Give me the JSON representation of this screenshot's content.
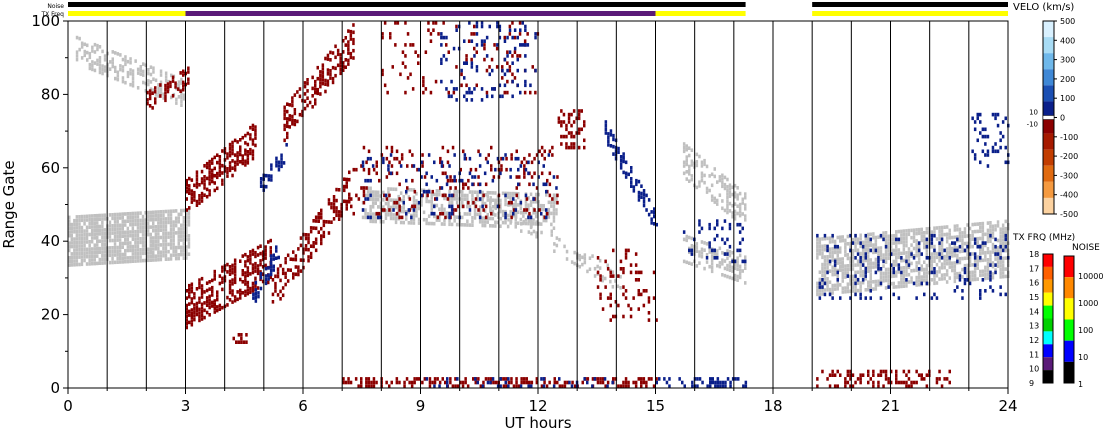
{
  "chart_data": {
    "type": "heatmap",
    "x_axis": {
      "label": "UT hours",
      "range": [
        0,
        24
      ],
      "ticks": [
        "0",
        "3",
        "6",
        "9",
        "12",
        "15",
        "18",
        "21",
        "24"
      ]
    },
    "y_axis": {
      "label": "Range Gate",
      "range": [
        0,
        100
      ],
      "ticks": [
        "0",
        "20",
        "40",
        "60",
        "80",
        "100"
      ]
    },
    "top_bars": {
      "noise_label": "Noise",
      "txfreq_label": "TX Freq",
      "noise_segments_hours": [
        [
          0,
          17.3
        ],
        [
          19.0,
          24
        ]
      ],
      "txfreq_segments": [
        {
          "start": 0,
          "end": 3,
          "color": "#ffff00"
        },
        {
          "start": 3,
          "end": 15,
          "color": "#5a1a78"
        },
        {
          "start": 15,
          "end": 17.3,
          "color": "#ffff00"
        },
        {
          "start": 19.0,
          "end": 24,
          "color": "#ffff00"
        }
      ]
    },
    "velocity_scale": {
      "title": "VELO (km/s)",
      "ticks": [
        "500",
        "400",
        "300",
        "200",
        "100",
        "0",
        "-100",
        "-200",
        "-300",
        "-400",
        "-500"
      ],
      "threshold_labels": [
        "10",
        "-10"
      ],
      "colors": [
        "#d9f1ff",
        "#a8dcf5",
        "#6fb8ea",
        "#3f88d6",
        "#1b4fb3",
        "#0a1f8a",
        "#8b0000",
        "#a61a00",
        "#c23d00",
        "#e06a10",
        "#f59a40",
        "#fcd2a0"
      ]
    },
    "txfreq_scale": {
      "title": "TX FRQ (MHz)",
      "ticks": [
        "18",
        "17",
        "16",
        "15",
        "14",
        "13",
        "12",
        "11",
        "10",
        "9"
      ],
      "colors": [
        "#ff0000",
        "#ff6000",
        "#ff9900",
        "#ffff00",
        "#00ff00",
        "#00d000",
        "#00ffff",
        "#0000ff",
        "#5a1a78",
        "#000000"
      ]
    },
    "noise_scale": {
      "title": "NOISE",
      "ticks": [
        "10000",
        "1000",
        "100",
        "10",
        "1"
      ],
      "colors": [
        "#ff0000",
        "#ff8800",
        "#ffff00",
        "#00ff00",
        "#0000ff",
        "#000000"
      ]
    },
    "colors": {
      "ground_scatter": "#c0c0c0",
      "toward": "#8b0000",
      "away": "#0a1f8a"
    }
  }
}
